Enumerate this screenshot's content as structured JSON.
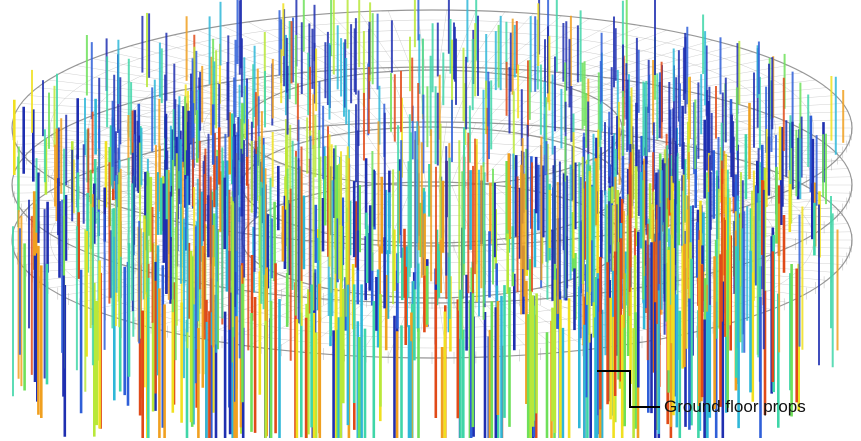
{
  "annotation": {
    "label": "Ground floor props"
  },
  "colors": {
    "background": "#ffffff",
    "slab_mesh": "#8c8c8c",
    "prop_scale": [
      "#1f2fb0",
      "#2f5fd8",
      "#2fb7d8",
      "#3fd6a8",
      "#6fe05a",
      "#b8e83a",
      "#f0e020",
      "#f0a020",
      "#e04a18"
    ],
    "callout_line": "#000000"
  }
}
